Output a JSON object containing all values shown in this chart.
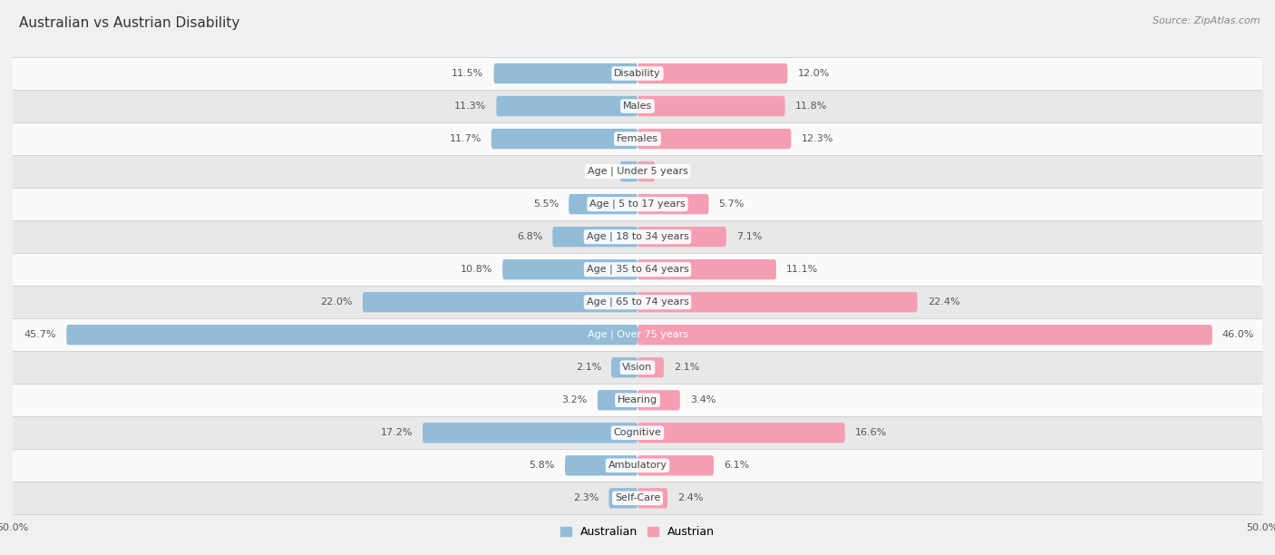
{
  "title": "Australian vs Austrian Disability",
  "source": "Source: ZipAtlas.com",
  "categories": [
    "Disability",
    "Males",
    "Females",
    "Age | Under 5 years",
    "Age | 5 to 17 years",
    "Age | 18 to 34 years",
    "Age | 35 to 64 years",
    "Age | 65 to 74 years",
    "Age | Over 75 years",
    "Vision",
    "Hearing",
    "Cognitive",
    "Ambulatory",
    "Self-Care"
  ],
  "australian": [
    11.5,
    11.3,
    11.7,
    1.4,
    5.5,
    6.8,
    10.8,
    22.0,
    45.7,
    2.1,
    3.2,
    17.2,
    5.8,
    2.3
  ],
  "austrian": [
    12.0,
    11.8,
    12.3,
    1.4,
    5.7,
    7.1,
    11.1,
    22.4,
    46.0,
    2.1,
    3.4,
    16.6,
    6.1,
    2.4
  ],
  "australian_color": "#92bcd8",
  "austrian_color": "#f49eb4",
  "bar_height": 0.62,
  "xlim": 50.0,
  "x_axis_label_left": "50.0%",
  "x_axis_label_right": "50.0%",
  "background_color": "#f0f0f0",
  "row_bg_light": "#fafafa",
  "row_bg_dark": "#e8e8e8",
  "title_fontsize": 11,
  "source_fontsize": 8,
  "label_fontsize": 8,
  "category_fontsize": 8,
  "legend_fontsize": 9,
  "label_color": "#555555",
  "category_text_dark": "#444444",
  "category_text_light": "#ffffff"
}
